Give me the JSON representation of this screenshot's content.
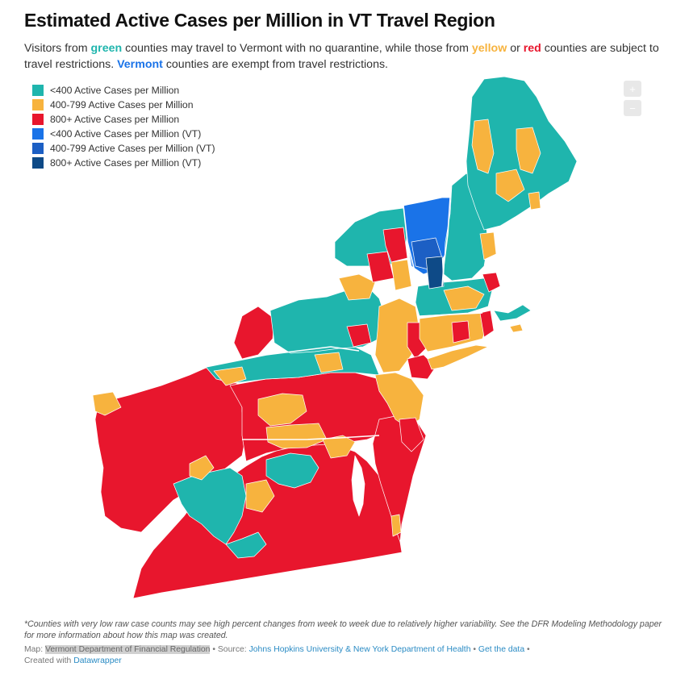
{
  "title": "Estimated Active Cases per Million in VT Travel Region",
  "description": {
    "part1": "Visitors from ",
    "green": "green",
    "part2": " counties may travel to Vermont with no quarantine, while those from ",
    "yellow": "yellow",
    "part3": " or ",
    "red": "red",
    "part4": " counties are subject to travel restrictions. ",
    "vermont": "Vermont",
    "part5": " counties are exempt from travel restrictions."
  },
  "legend": [
    {
      "label": "<400 Active Cases per Million",
      "color": "#1fb5ad"
    },
    {
      "label": "400-799 Active Cases per Million",
      "color": "#f7b33e"
    },
    {
      "label": "800+ Active Cases per Million",
      "color": "#e8162d"
    },
    {
      "label": "<400 Active Cases per Million (VT)",
      "color": "#1a73e8"
    },
    {
      "label": "400-799 Active Cases per Million (VT)",
      "color": "#1c5fc4"
    },
    {
      "label": "800+ Active Cases per Million (VT)",
      "color": "#0e4a87"
    }
  ],
  "zoom": {
    "in_label": "+",
    "out_label": "−"
  },
  "notes": "*Counties with very low raw case counts may see high percent changes from week to week due to relatively higher variability. See the DFR Modeling Methodology paper for more information about how this map was created.",
  "footer": {
    "map_prefix": "Map: ",
    "map_source": "Vermont Department of Financial Regulation",
    "source_prefix": " • Source: ",
    "source": "Johns Hopkins University & New York Department of Health",
    "sep": " • ",
    "get_data": "Get the data",
    "sep2": " •",
    "created_prefix": "Created with ",
    "created_with": "Datawrapper"
  }
}
